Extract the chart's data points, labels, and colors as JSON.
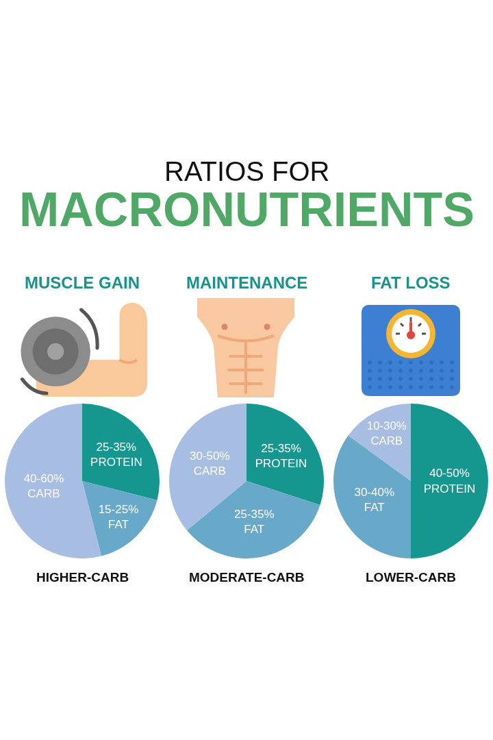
{
  "chart_data": [
    {
      "type": "pie",
      "title": "MUSCLE GAIN",
      "xlabel": "HIGHER-CARB",
      "annotations": [
        "RATIOS FOR",
        "MACRONUTRIENTS"
      ],
      "categories": [
        "25-35% PROTEIN",
        "15-25% FAT",
        "40-60% CARB"
      ],
      "values": [
        29,
        17,
        54
      ],
      "colors": [
        "#15968f",
        "#68a9c9",
        "#a8bde2"
      ]
    },
    {
      "type": "pie",
      "title": "MAINTENANCE",
      "xlabel": "MODERATE-CARB",
      "categories": [
        "25-35% PROTEIN",
        "25-35% FAT",
        "30-50% CARB"
      ],
      "values": [
        30,
        34,
        36
      ],
      "colors": [
        "#15968f",
        "#68a9c9",
        "#a8bde2"
      ]
    },
    {
      "type": "pie",
      "title": "FAT LOSS",
      "xlabel": "LOWER-CARB",
      "categories": [
        "40-50% PROTEIN",
        "30-40% FAT",
        "10-30% CARB"
      ],
      "values": [
        50,
        35,
        15
      ],
      "colors": [
        "#15968f",
        "#68a9c9",
        "#a8bde2"
      ]
    }
  ]
}
